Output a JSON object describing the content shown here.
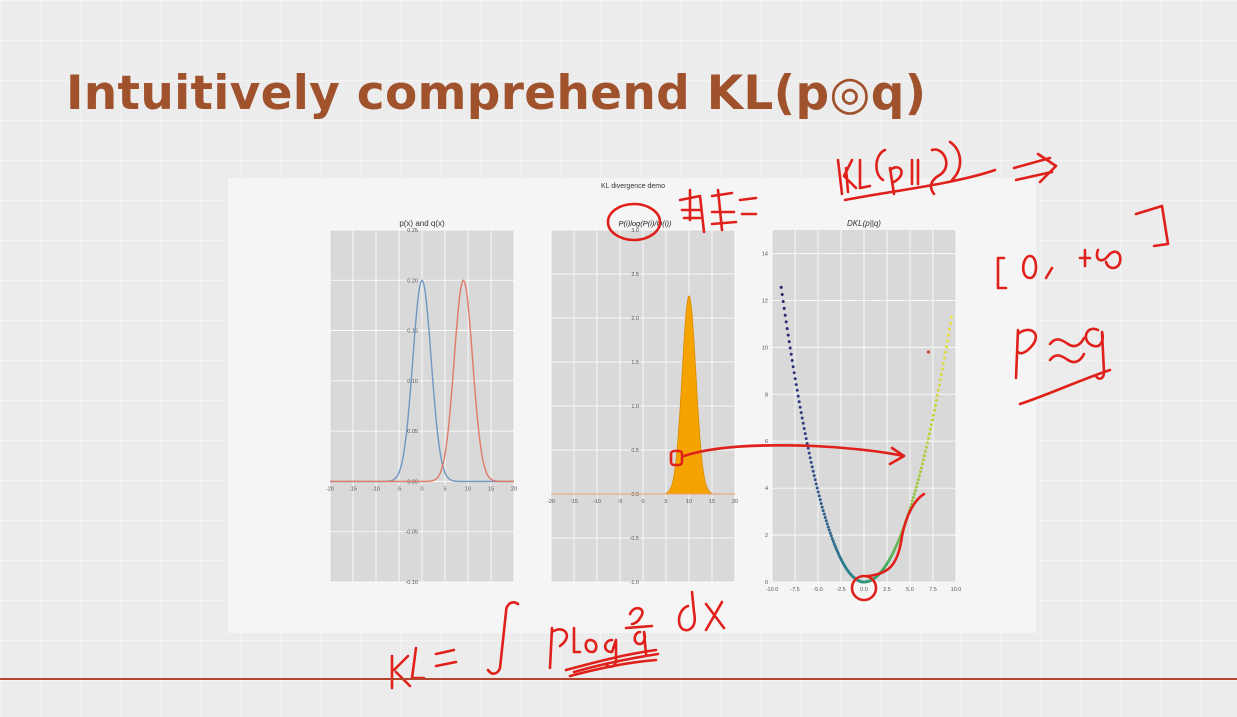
{
  "slide": {
    "title": "Intuitively comprehend KL(p◎q)"
  },
  "figure": {
    "suptitle": "KL divergence demo",
    "panels": [
      {
        "title": "p(x) and q(x)"
      },
      {
        "title": "P(i)log(P(i)/Q(i))"
      },
      {
        "title": "DKL(p||q)"
      }
    ]
  },
  "colors": {
    "title": "#a0522d",
    "p_curve": "#6f97c2",
    "q_curve": "#e07b66",
    "fill_area": "#f5a300",
    "ink": "#e0201a",
    "axes_bg": "#d9d9d9"
  },
  "chart_data": [
    {
      "type": "line",
      "title": "p(x) and q(x)",
      "x_ticks": [
        -20,
        -15,
        -10,
        -5,
        0,
        5,
        10,
        15,
        20
      ],
      "y_ticks": [
        -0.1,
        -0.05,
        0,
        0.05,
        0.1,
        0.15,
        0.2,
        0.25
      ],
      "xlim": [
        -20,
        20
      ],
      "ylim": [
        -0.1,
        0.25
      ],
      "grid": true,
      "series": [
        {
          "color": "#6f97c2",
          "mean": 0,
          "std": 2
        },
        {
          "color": "#e07b66",
          "mean": 9,
          "std": 2
        }
      ]
    },
    {
      "type": "area",
      "title": "P(i)log(P(i)/Q(i))",
      "x_ticks": [
        -20,
        -15,
        -10,
        -5,
        0,
        5,
        10,
        15,
        20
      ],
      "y_ticks": [
        -1.0,
        -0.5,
        0,
        0.5,
        1.0,
        1.5,
        2.0,
        2.5,
        3.0
      ],
      "xlim": [
        -20,
        20
      ],
      "ylim": [
        -1.0,
        3.0
      ],
      "grid": true,
      "series": [
        {
          "color": "#f5a300",
          "peak_x": 10,
          "peak_y": 2.25,
          "spread": 1.5
        }
      ]
    },
    {
      "type": "scatter",
      "title": "DKL(p||q)",
      "x_ticks": [
        -10.0,
        -7.5,
        -5.0,
        -2.5,
        0.0,
        2.5,
        5.0,
        7.5,
        10.0
      ],
      "y_ticks": [
        0,
        2,
        4,
        6,
        8,
        10,
        12,
        14
      ],
      "xlim": [
        -10,
        10
      ],
      "ylim": [
        0,
        15
      ],
      "grid": true,
      "curve": "y = x^2 / 8",
      "x_range": [
        -9,
        9.5
      ],
      "outlier": {
        "x": 7,
        "y": 9.8
      }
    }
  ],
  "annotations": {
    "hand_notes": [
      "重叠",
      "KL(p||q)",
      "⇒",
      "[0, +∞]",
      "p ≈ q",
      "KL = ∫ p log p/q dx"
    ]
  }
}
